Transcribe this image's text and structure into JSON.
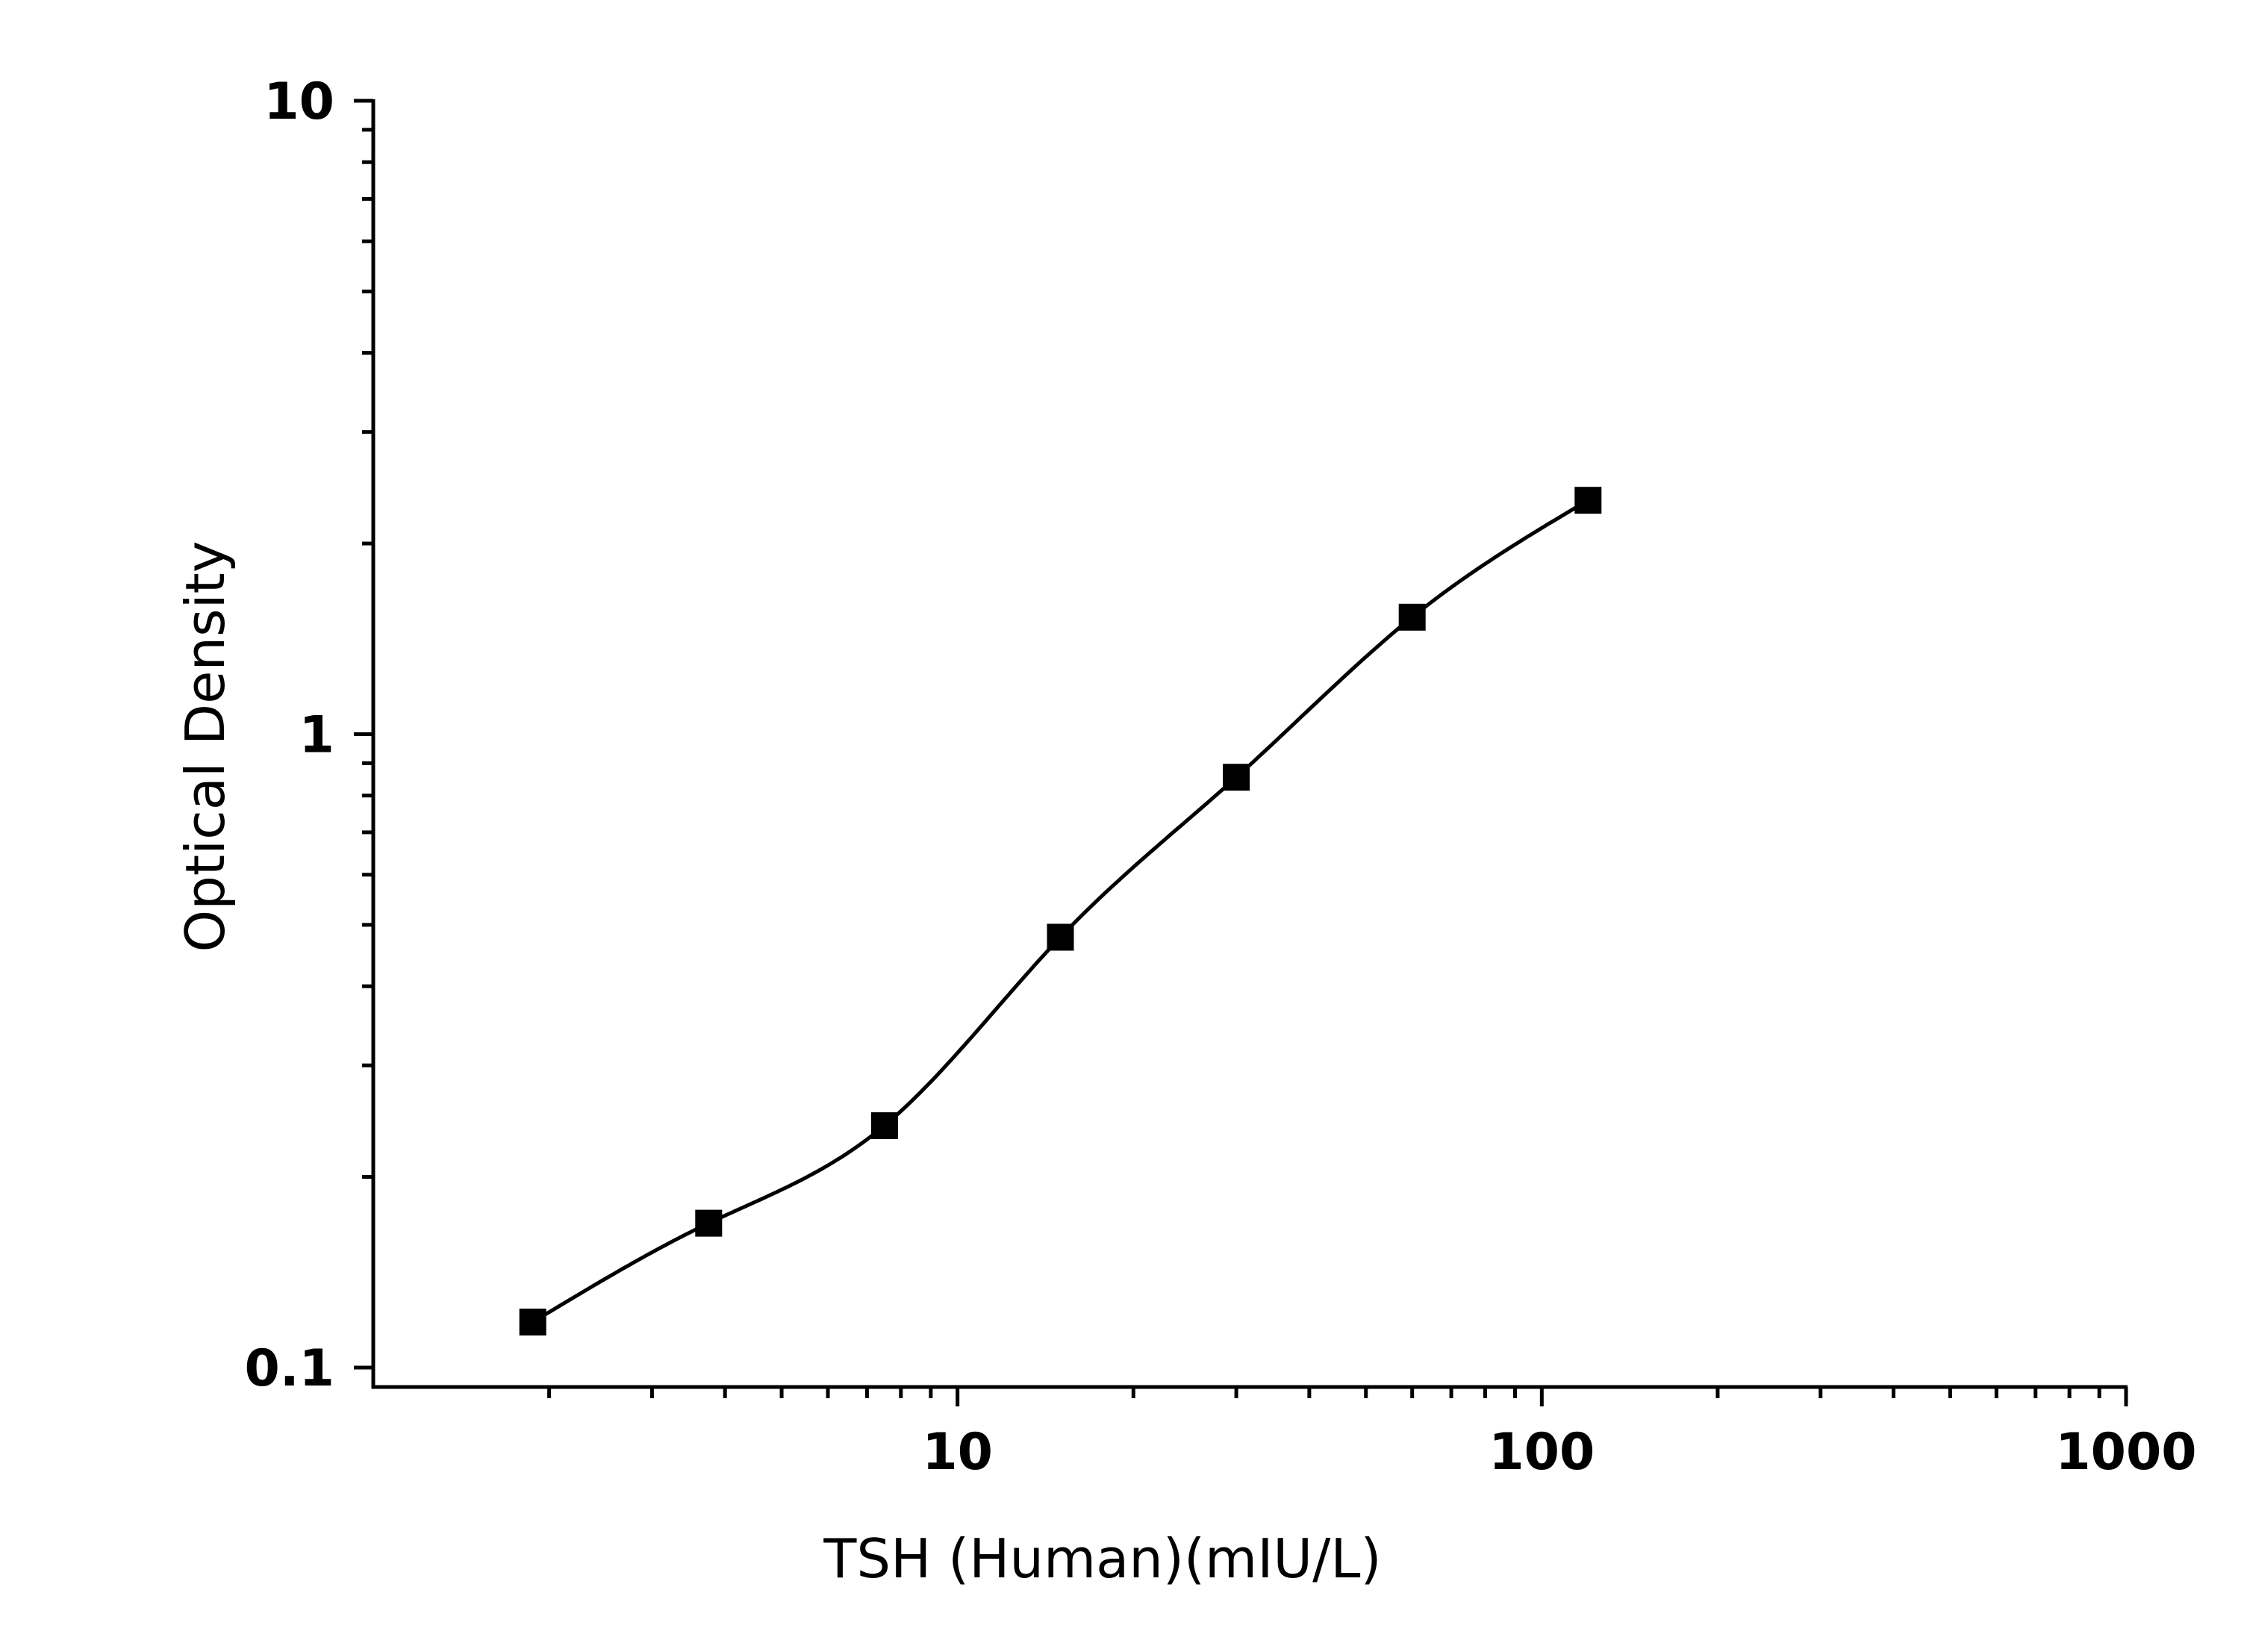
{
  "chart_data": {
    "type": "scatter",
    "xscale": "log",
    "yscale": "log",
    "xlim": [
      1,
      1000
    ],
    "ylim": [
      0.1,
      10
    ],
    "xlabel": "TSH (Human)(mIU/L)",
    "ylabel": "Optical Density",
    "x_ticks": [
      {
        "value": 10,
        "label": "10"
      },
      {
        "value": 100,
        "label": "100"
      },
      {
        "value": 1000,
        "label": "1000"
      }
    ],
    "y_ticks": [
      {
        "value": 0.1,
        "label": "0.1"
      },
      {
        "value": 1,
        "label": "1"
      },
      {
        "value": 10,
        "label": "10"
      }
    ],
    "grid": false,
    "legend": "none",
    "marker": "square",
    "color": "#000000",
    "series": [
      {
        "x": [
          1.875,
          3.75,
          7.5,
          15,
          30,
          60,
          120
        ],
        "y": [
          0.118,
          0.169,
          0.241,
          0.478,
          0.855,
          1.53,
          2.34
        ]
      }
    ],
    "fit_curve": true
  }
}
